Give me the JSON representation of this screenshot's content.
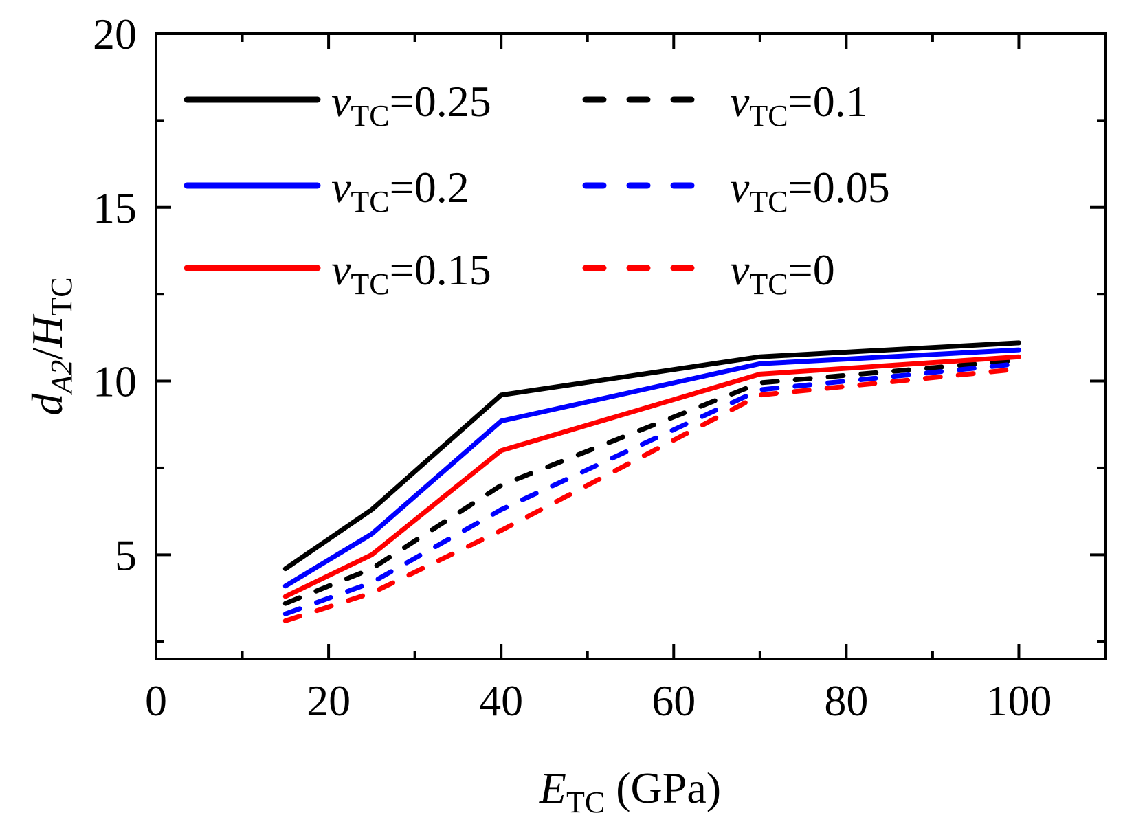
{
  "chart_data": {
    "type": "line",
    "title": "",
    "xlabel": {
      "main": "E",
      "sub": "TC",
      "unit": " (GPa)"
    },
    "ylabel": {
      "d": "d",
      "dsub": "A2",
      "slash": "/",
      "h": "H",
      "hsub": "TC"
    },
    "xlim": [
      0,
      110
    ],
    "ylim": [
      2,
      20
    ],
    "xticks": [
      0,
      20,
      40,
      60,
      80,
      100
    ],
    "xticklabels": [
      "0",
      "20",
      "40",
      "60",
      "80",
      "100"
    ],
    "xminor": [
      10,
      30,
      50,
      70,
      90
    ],
    "yticks": [
      5,
      10,
      15,
      20
    ],
    "yticklabels": [
      "5",
      "10",
      "15",
      "20"
    ],
    "yminor": [
      2.5,
      7.5,
      12.5,
      17.5
    ],
    "grid": false,
    "legend_position": "top-left",
    "x": [
      15,
      25,
      40,
      70,
      100
    ],
    "series": [
      {
        "name": "v_TC=0.25",
        "prefix": "v",
        "sub": "TC",
        "suffix": "=0.25",
        "color": "#000000",
        "style": "solid",
        "values": [
          4.6,
          6.3,
          9.6,
          10.7,
          11.1
        ]
      },
      {
        "name": "v_TC=0.2",
        "prefix": "v",
        "sub": "TC",
        "suffix": "=0.2",
        "color": "#0000ff",
        "style": "solid",
        "values": [
          4.1,
          5.6,
          8.85,
          10.5,
          10.9
        ]
      },
      {
        "name": "v_TC=0.15",
        "prefix": "v",
        "sub": "TC",
        "suffix": "=0.15",
        "color": "#ff0000",
        "style": "solid",
        "values": [
          3.8,
          5.0,
          8.0,
          10.2,
          10.7
        ]
      },
      {
        "name": "v_TC=0.1",
        "prefix": "v",
        "sub": "TC",
        "suffix": "=0.1",
        "color": "#000000",
        "style": "dashed",
        "values": [
          3.6,
          4.6,
          7.0,
          9.95,
          10.6
        ]
      },
      {
        "name": "v_TC=0.05",
        "prefix": "v",
        "sub": "TC",
        "suffix": "=0.05",
        "color": "#0000ff",
        "style": "dashed",
        "values": [
          3.3,
          4.2,
          6.3,
          9.75,
          10.5
        ]
      },
      {
        "name": "v_TC=0",
        "prefix": "v",
        "sub": "TC",
        "suffix": "=0",
        "color": "#ff0000",
        "style": "dashed",
        "values": [
          3.1,
          3.9,
          5.7,
          9.6,
          10.35
        ]
      }
    ]
  }
}
